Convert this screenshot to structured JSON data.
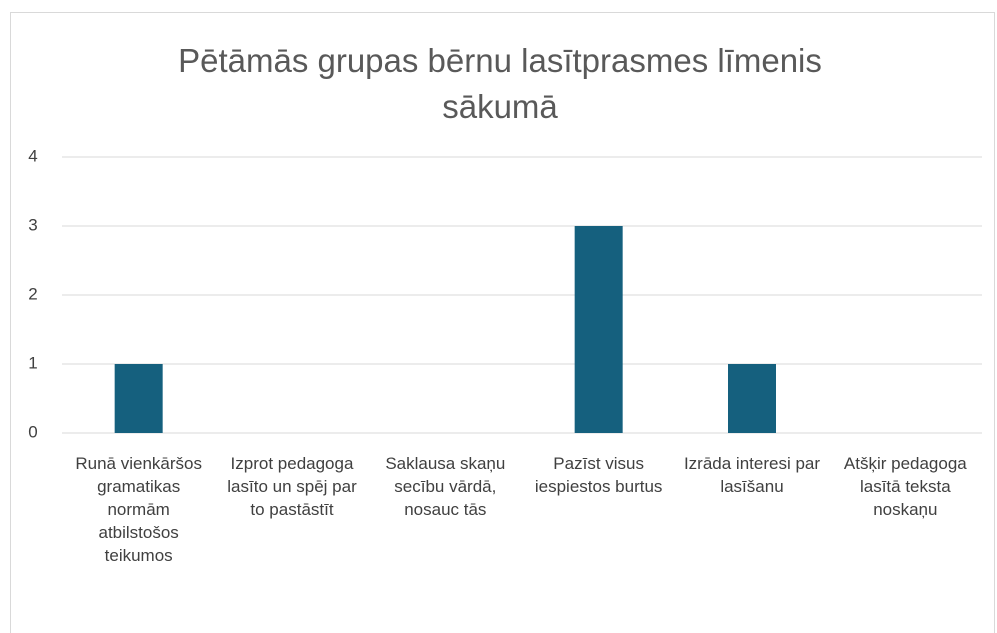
{
  "chart_data": {
    "type": "bar",
    "title": "Pētāmās grupas bērnu lasītprasmes līmenis sākumā",
    "categories": [
      "Runā vienkāršos gramatikas normām atbilstošos teikumos",
      "Izprot pedagoga lasīto un spēj par to pastāstīt",
      "Saklausa skaņu secību vārdā, nosauc tās",
      "Pazīst visus iespiestos burtus",
      "Izrāda interesi par lasīšanu",
      "Atšķir pedagoga lasītā teksta noskaņu"
    ],
    "values": [
      1,
      0,
      0,
      3,
      1,
      0
    ],
    "color": "#15607e",
    "ylim": [
      0,
      4
    ],
    "yticks": [
      0,
      1,
      2,
      3,
      4
    ],
    "grid": true
  }
}
